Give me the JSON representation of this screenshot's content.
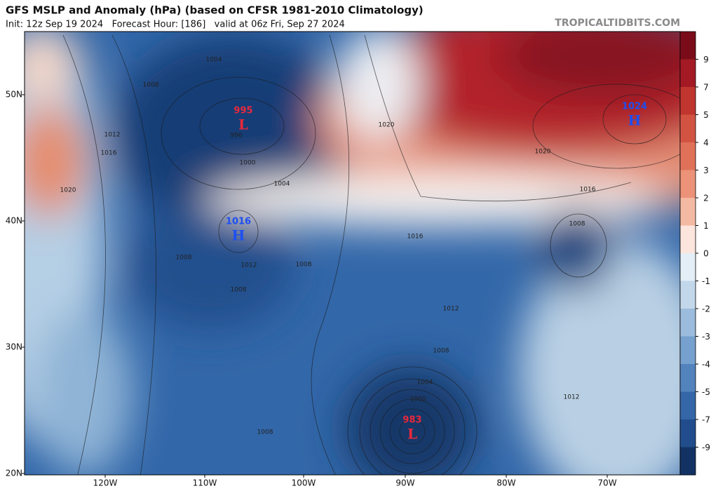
{
  "header": {
    "title": "GFS MSLP and Anomaly (hPa) (based on CFSR 1981-2010 Climatology)",
    "subtitle": "Init: 12z Sep 19 2024   Forecast Hour: [186]   valid at 06z Fri, Sep 27 2024",
    "credit": "TROPICALTIDBITS.COM"
  },
  "map": {
    "latitude_labels": [
      "50N",
      "40N",
      "30N",
      "20N"
    ],
    "longitude_labels": [
      "120W",
      "110W",
      "100W",
      "90W",
      "80W",
      "70W"
    ],
    "pressure_centers": [
      {
        "letter": "L",
        "value": 995
      },
      {
        "letter": "H",
        "value": 1016
      },
      {
        "letter": "H",
        "value": 1024
      },
      {
        "letter": "L",
        "value": 983
      }
    ],
    "contour_labels": [
      1004,
      1008,
      1012,
      1016,
      1020,
      996,
      1000,
      1004,
      1008,
      1012,
      1008,
      1008,
      1016,
      1020,
      1020,
      1016,
      1008,
      1012,
      1008,
      1004,
      1000,
      1012,
      1008
    ]
  },
  "colorbar": {
    "labels": [
      9,
      7,
      5,
      4,
      3,
      2,
      1,
      0,
      -1,
      -2,
      -3,
      -4,
      -5,
      -7,
      -9
    ]
  }
}
